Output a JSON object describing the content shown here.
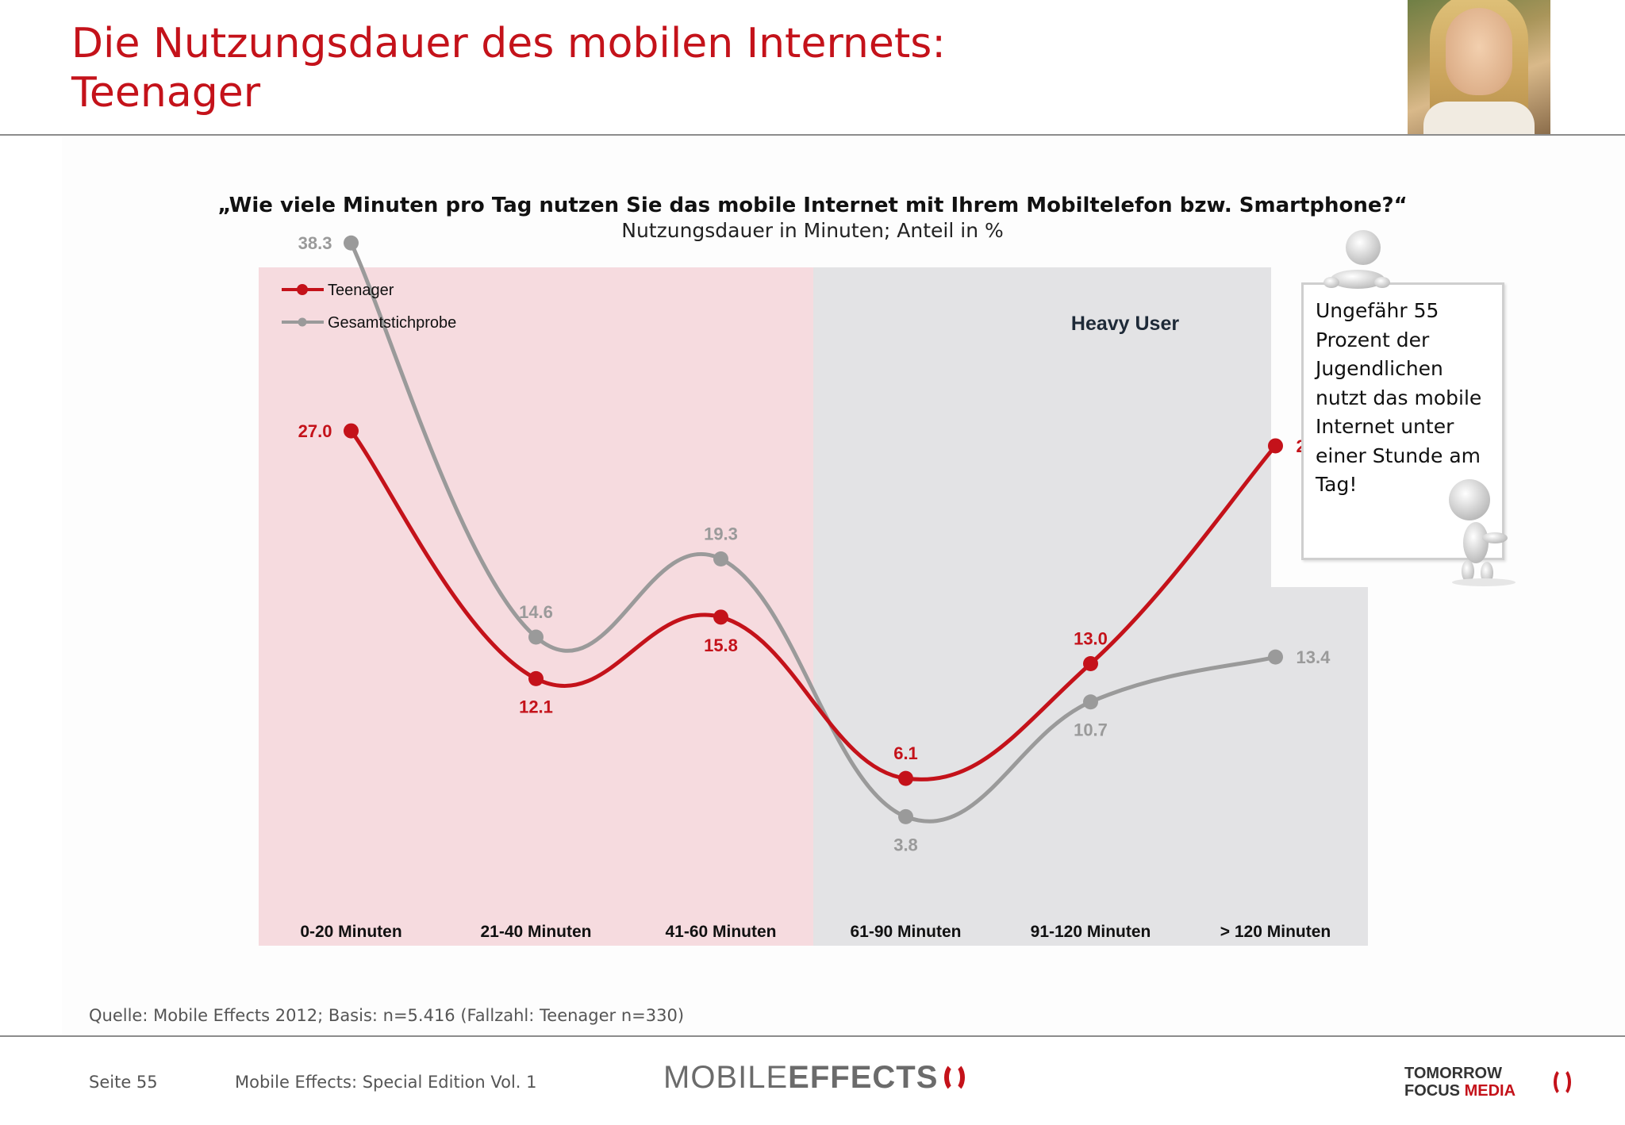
{
  "header": {
    "title_line1": "Die Nutzungsdauer des mobilen Internets:",
    "title_line2": "Teenager"
  },
  "question": "„Wie viele Minuten pro Tag nutzen Sie das mobile Internet mit Ihrem Mobiltelefon bzw. Smartphone?“",
  "subtitle": "Nutzungsdauer in Minuten; Anteil in %",
  "callout": {
    "text": "Ungefähr 55 Prozent der Jugendlichen nutzt das mobile Internet unter einer Stunde am Tag!"
  },
  "chart_data": {
    "type": "line",
    "categories": [
      "0-20 Minuten",
      "21-40 Minuten",
      "41-60 Minuten",
      "61-90 Minuten",
      "91-120 Minuten",
      "> 120 Minuten"
    ],
    "series": [
      {
        "name": "Teenager",
        "values": [
          27.0,
          12.1,
          15.8,
          6.1,
          13.0,
          26.1
        ],
        "color": "#c4121a"
      },
      {
        "name": "Gesamtstichprobe",
        "values": [
          38.3,
          14.6,
          19.3,
          3.8,
          10.7,
          13.4
        ],
        "color": "#9a9a9a"
      }
    ],
    "regions": [
      {
        "from_category": 0,
        "to_category": 2,
        "color": "#f6dbdf",
        "label": ""
      },
      {
        "from_category": 3,
        "to_category": 5,
        "color": "#e3e3e5",
        "label": "Heavy User"
      }
    ],
    "legend": "top-left",
    "grid": false,
    "smooth": true
  },
  "footer": {
    "source": "Quelle: Mobile Effects 2012; Basis: n=5.416 (Fallzahl: Teenager n=330)",
    "page": "Seite 55",
    "edition": "Mobile Effects: Special Edition Vol. 1",
    "logo_mobile": "MOBILE",
    "logo_effects": "EFFECTS",
    "logo_tomorrow": "TOMORROW",
    "logo_focus": "FOCUS",
    "logo_media": "MEDIA"
  }
}
